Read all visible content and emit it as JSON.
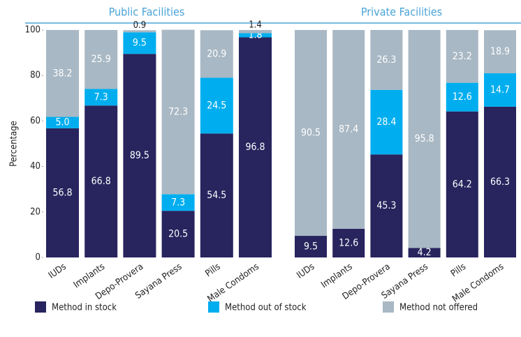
{
  "chart_data": [
    {
      "type": "bar",
      "stacked": true,
      "title": "Public Facilities",
      "ylabel": "Percentage",
      "categories": [
        "IUDs",
        "Implants",
        "Depo-Provera",
        "Sayana Press",
        "Pills",
        "Male Condoms"
      ],
      "ylim": [
        0,
        100
      ],
      "yticks": [
        0,
        20,
        40,
        60,
        80,
        100
      ],
      "series": [
        {
          "name": "Method in stock",
          "color": "#27245e",
          "values": [
            56.8,
            66.8,
            89.5,
            20.5,
            54.5,
            96.8
          ],
          "value_labels": [
            "56.8",
            "66.8",
            "89.5",
            "20.5",
            "54.5",
            "96.8"
          ]
        },
        {
          "name": "Method out of stock",
          "color": "#00aeef",
          "values": [
            5.0,
            7.3,
            9.5,
            7.3,
            24.5,
            1.8
          ],
          "value_labels": [
            "5.0",
            "7.3",
            "9.5",
            "7.3",
            "24.5",
            "1.8"
          ]
        },
        {
          "name": "Method not offered",
          "color": "#a8b8c4",
          "values": [
            38.2,
            25.9,
            0.9,
            72.3,
            20.9,
            1.4
          ],
          "value_labels": [
            "38.2",
            "25.9",
            "0.9",
            "72.3",
            "20.9",
            "1.4"
          ]
        }
      ]
    },
    {
      "type": "bar",
      "stacked": true,
      "title": "Private Facilities",
      "categories": [
        "IUDs",
        "Implants",
        "Depo-Provera",
        "Sayana Press",
        "Pills",
        "Male Condoms"
      ],
      "ylim": [
        0,
        100
      ],
      "series": [
        {
          "color": "#27245e",
          "values": [
            9.5,
            12.6,
            45.3,
            4.2,
            64.2,
            66.3
          ],
          "value_labels": [
            "9.5",
            "12.6",
            "45.3",
            "4.2",
            "64.2",
            "66.3"
          ]
        },
        {
          "color": "#00aeef",
          "values": [
            null,
            null,
            28.4,
            null,
            12.6,
            14.7
          ],
          "value_labels": [
            null,
            null,
            "28.4",
            null,
            "12.6",
            "14.7"
          ]
        },
        {
          "color": "#a8b8c4",
          "values": [
            90.5,
            87.4,
            26.3,
            95.8,
            23.2,
            18.9
          ],
          "value_labels": [
            "90.5",
            "87.4",
            "26.3",
            "95.8",
            "23.2",
            "18.9"
          ]
        }
      ]
    }
  ]
}
